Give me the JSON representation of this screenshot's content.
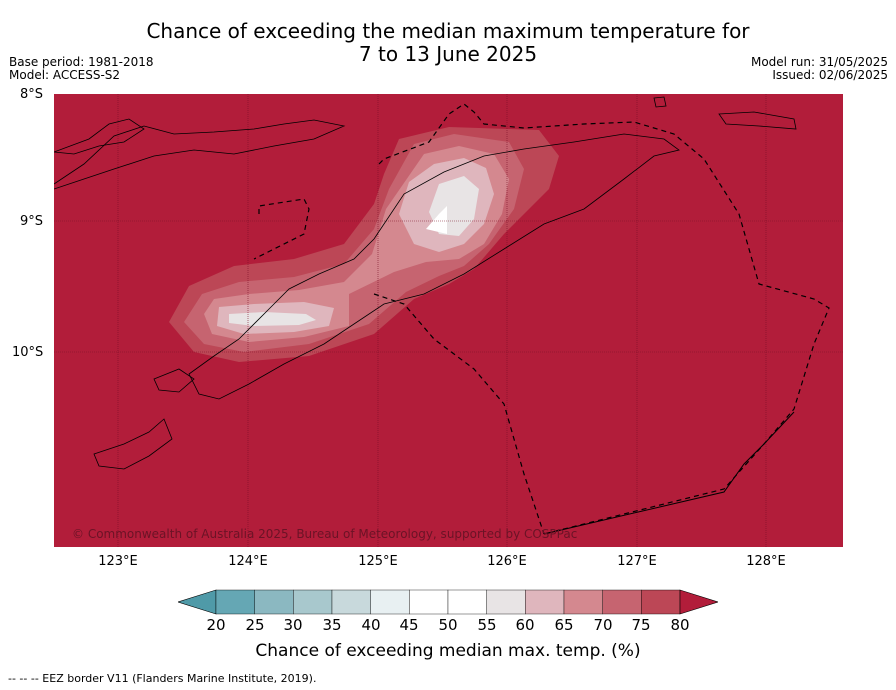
{
  "title": "Chance of exceeding the median maximum temperature for\n7 to 13 June 2025",
  "meta_left": {
    "base_period": "Base period: 1981-2018",
    "model": "Model: ACCESS-S2"
  },
  "meta_right": {
    "model_run": "Model run: 31/05/2025",
    "issued": "Issued: 02/06/2025"
  },
  "map": {
    "lat_labels": [
      "8°S",
      "9°S",
      "10°S"
    ],
    "lon_labels": [
      "123°E",
      "124°E",
      "125°E",
      "126°E",
      "127°E",
      "128°E"
    ],
    "copyright": "© Commonwealth of Australia 2025, Bureau of Meteorology, supported by COSPPac",
    "background_color": "#b21d3a"
  },
  "colorbar": {
    "ticks": [
      "20",
      "25",
      "30",
      "35",
      "40",
      "45",
      "50",
      "55",
      "60",
      "65",
      "70",
      "75",
      "80"
    ],
    "colors": [
      "#65a7b4",
      "#8bb8c1",
      "#a8c8cd",
      "#c8d9dc",
      "#e8f0f2",
      "#ffffff",
      "#ffffff",
      "#e8e4e5",
      "#dfb6bd",
      "#d4888f",
      "#c66470",
      "#bc4756"
    ],
    "under_color": "#4f9aa8",
    "over_color": "#b21d3a",
    "label": "Chance of exceeding median max. temp. (%)"
  },
  "eez_note": "--  --  -- EEZ border V11 (Flanders Marine Institute, 2019)."
}
